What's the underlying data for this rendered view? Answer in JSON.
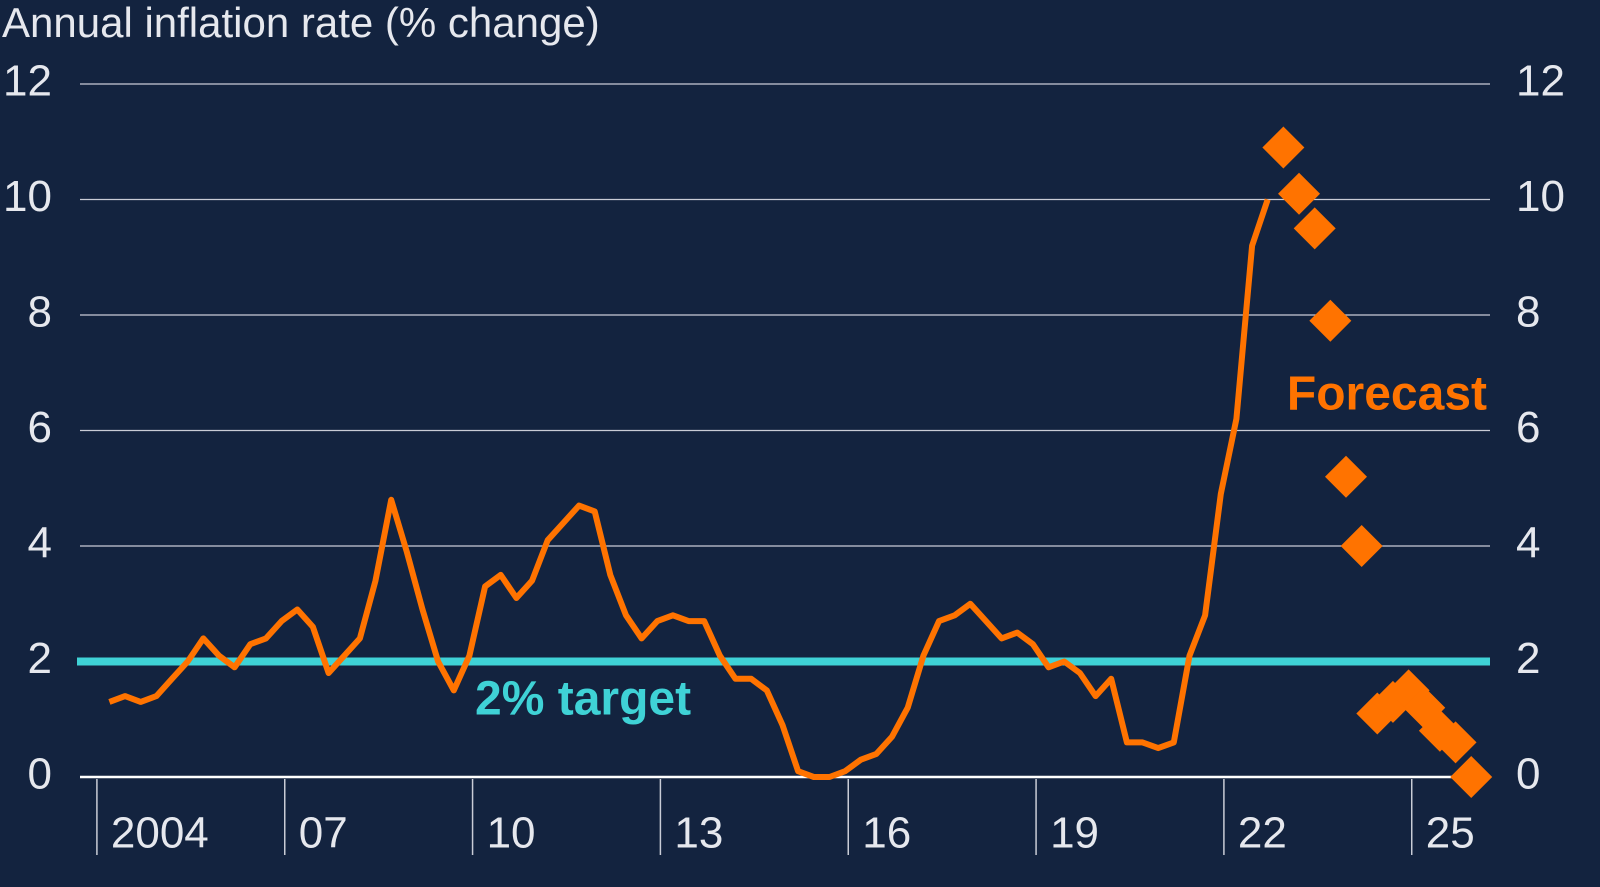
{
  "chart_data": {
    "type": "line",
    "title": "Annual inflation rate (% change)",
    "background": "#13233f",
    "xlim": [
      2003.73,
      2026.25
    ],
    "xticks": [
      2004,
      {
        "value": 2007,
        "label": "07"
      },
      {
        "value": 2010,
        "label": "10"
      },
      {
        "value": 2013,
        "label": "13"
      },
      {
        "value": 2016,
        "label": "16"
      },
      {
        "value": 2019,
        "label": "19"
      },
      {
        "value": 2022,
        "label": "22"
      },
      {
        "value": 2025,
        "label": "25"
      }
    ],
    "ylim": [
      0,
      12
    ],
    "yticks": [
      0,
      2,
      4,
      6,
      8,
      10,
      12
    ],
    "grid": true,
    "series": [
      {
        "type": "line",
        "color": "#ff7300",
        "x": [
          2004.2,
          2004.45,
          2004.7,
          2004.95,
          2005.2,
          2005.45,
          2005.7,
          2005.95,
          2006.2,
          2006.45,
          2006.7,
          2006.95,
          2007.2,
          2007.45,
          2007.7,
          2007.95,
          2008.2,
          2008.45,
          2008.7,
          2008.95,
          2009.2,
          2009.45,
          2009.7,
          2009.95,
          2010.2,
          2010.45,
          2010.7,
          2010.95,
          2011.2,
          2011.45,
          2011.7,
          2011.95,
          2012.2,
          2012.45,
          2012.7,
          2012.95,
          2013.2,
          2013.45,
          2013.7,
          2013.95,
          2014.2,
          2014.45,
          2014.7,
          2014.95,
          2015.2,
          2015.45,
          2015.7,
          2015.95,
          2016.2,
          2016.45,
          2016.7,
          2016.95,
          2017.2,
          2017.45,
          2017.7,
          2017.95,
          2018.2,
          2018.45,
          2018.7,
          2018.95,
          2019.2,
          2019.45,
          2019.7,
          2019.95,
          2020.2,
          2020.45,
          2020.7,
          2020.95,
          2021.2,
          2021.45,
          2021.7,
          2021.95,
          2022.2,
          2022.45,
          2022.7
        ],
        "values": [
          1.3,
          1.4,
          1.3,
          1.4,
          1.7,
          2.0,
          2.4,
          2.1,
          1.9,
          2.3,
          2.4,
          2.7,
          2.9,
          2.6,
          1.8,
          2.1,
          2.4,
          3.4,
          4.8,
          3.9,
          2.9,
          2.0,
          1.5,
          2.1,
          3.3,
          3.5,
          3.1,
          3.4,
          4.1,
          4.4,
          4.7,
          4.6,
          3.5,
          2.8,
          2.4,
          2.7,
          2.8,
          2.7,
          2.7,
          2.1,
          1.7,
          1.7,
          1.5,
          0.9,
          0.1,
          0.0,
          0.0,
          0.1,
          0.3,
          0.4,
          0.7,
          1.2,
          2.1,
          2.7,
          2.8,
          3.0,
          2.7,
          2.4,
          2.5,
          2.3,
          1.9,
          2.0,
          1.8,
          1.4,
          1.7,
          0.6,
          0.6,
          0.5,
          0.6,
          2.1,
          2.8,
          4.9,
          6.2,
          9.2,
          10.0
        ]
      },
      {
        "type": "scatter",
        "marker": "diamond",
        "color": "#ff7300",
        "x": [
          2022.95,
          2023.2,
          2023.45,
          2023.7,
          2023.95,
          2024.2,
          2024.45,
          2024.7,
          2024.95,
          2025.2,
          2025.45,
          2025.7,
          2025.95
        ],
        "values": [
          10.9,
          10.1,
          9.5,
          7.9,
          5.2,
          4.0,
          1.1,
          1.3,
          1.5,
          1.2,
          0.8,
          0.6,
          0.0
        ]
      }
    ],
    "reference_line": {
      "value": 2,
      "color": "#3fd2d6",
      "label": "2% target"
    },
    "annotation": {
      "text": "Forecast",
      "color": "#ff7300"
    }
  }
}
